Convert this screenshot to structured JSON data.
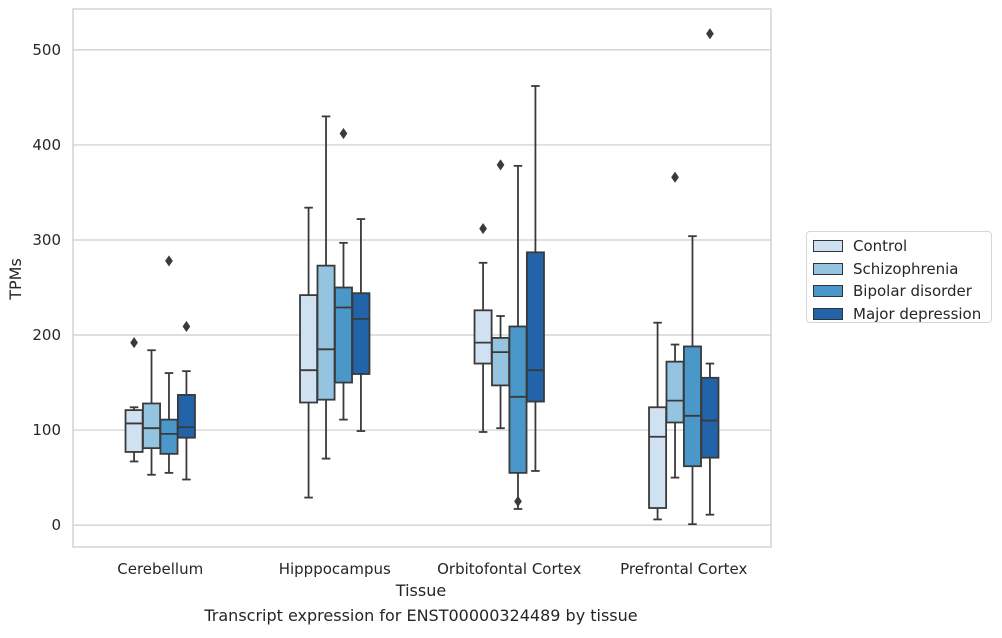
{
  "caption": "Transcript expression for ENST00000324489 by tissue",
  "colors": {
    "Control": "#d0e1f2",
    "Schizophrenia": "#94c4df",
    "Bipolar disorder": "#4a98c9",
    "Major depression": "#2264aa"
  },
  "chart_data": {
    "type": "box",
    "xlabel": "Tissue",
    "ylabel": "TPMs",
    "ylim": [
      -23,
      543
    ],
    "yticks": [
      0,
      100,
      200,
      300,
      400,
      500
    ],
    "grid": "horizontal",
    "legend_position": "right",
    "categories": [
      "Cerebellum",
      "Hipppocampus",
      "Orbitofontal Cortex",
      "Prefrontal Cortex"
    ],
    "series": [
      {
        "name": "Control",
        "boxes": [
          {
            "whislo": 67,
            "q1": 77,
            "med": 107,
            "q3": 121,
            "whishi": 124,
            "fliers": [
              192
            ]
          },
          {
            "whislo": 29,
            "q1": 129,
            "med": 163,
            "q3": 242,
            "whishi": 334,
            "fliers": []
          },
          {
            "whislo": 98,
            "q1": 170,
            "med": 192,
            "q3": 226,
            "whishi": 276,
            "fliers": [
              312
            ]
          },
          {
            "whislo": 6,
            "q1": 18,
            "med": 93,
            "q3": 124,
            "whishi": 213,
            "fliers": []
          }
        ]
      },
      {
        "name": "Schizophrenia",
        "boxes": [
          {
            "whislo": 53,
            "q1": 81,
            "med": 102,
            "q3": 128,
            "whishi": 184,
            "fliers": []
          },
          {
            "whislo": 70,
            "q1": 132,
            "med": 185,
            "q3": 273,
            "whishi": 430,
            "fliers": []
          },
          {
            "whislo": 102,
            "q1": 147,
            "med": 182,
            "q3": 197,
            "whishi": 220,
            "fliers": [
              379
            ]
          },
          {
            "whislo": 50,
            "q1": 108,
            "med": 131,
            "q3": 172,
            "whishi": 190,
            "fliers": [
              366
            ]
          }
        ]
      },
      {
        "name": "Bipolar disorder",
        "boxes": [
          {
            "whislo": 55,
            "q1": 75,
            "med": 96,
            "q3": 111,
            "whishi": 160,
            "fliers": [
              278
            ]
          },
          {
            "whislo": 111,
            "q1": 150,
            "med": 229,
            "q3": 250,
            "whishi": 297,
            "fliers": [
              412
            ]
          },
          {
            "whislo": 17,
            "q1": 55,
            "med": 135,
            "q3": 209,
            "whishi": 378,
            "fliers": [
              25
            ]
          },
          {
            "whislo": 1,
            "q1": 62,
            "med": 115,
            "q3": 188,
            "whishi": 304,
            "fliers": []
          }
        ]
      },
      {
        "name": "Major depression",
        "boxes": [
          {
            "whislo": 48,
            "q1": 92,
            "med": 103,
            "q3": 137,
            "whishi": 162,
            "fliers": [
              209
            ]
          },
          {
            "whislo": 99,
            "q1": 159,
            "med": 217,
            "q3": 244,
            "whishi": 322,
            "fliers": []
          },
          {
            "whislo": 57,
            "q1": 130,
            "med": 163,
            "q3": 287,
            "whishi": 462,
            "fliers": []
          },
          {
            "whislo": 11,
            "q1": 71,
            "med": 110,
            "q3": 155,
            "whishi": 170,
            "fliers": [
              517
            ]
          }
        ]
      }
    ]
  }
}
